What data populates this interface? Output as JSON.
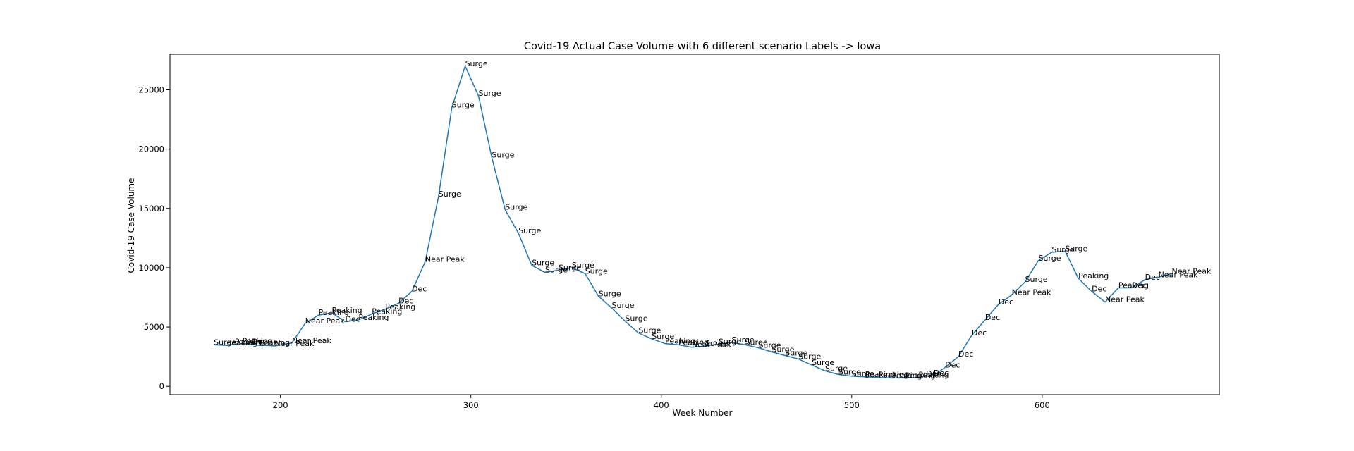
{
  "chart_data": {
    "type": "line",
    "title": "Covid-19 Actual Case Volume with 6 different scenario Labels  -> Iowa",
    "xlabel": "Week Number",
    "ylabel": "Covid-19 Case Volume",
    "xlim": [
      142,
      693
    ],
    "ylim": [
      -700,
      28000
    ],
    "xticks": [
      200,
      300,
      400,
      500,
      600
    ],
    "yticks": [
      0,
      5000,
      10000,
      15000,
      20000,
      25000
    ],
    "grid": false,
    "colors": {
      "line": "#1f77b4"
    },
    "series": [
      {
        "points": [
          {
            "x": 165,
            "y": 3500,
            "label": "Surge"
          },
          {
            "x": 172,
            "y": 3450,
            "label": "Peaking"
          },
          {
            "x": 176,
            "y": 3550,
            "label": "Peaking"
          },
          {
            "x": 180,
            "y": 3600,
            "label": "Peaking"
          },
          {
            "x": 185,
            "y": 3550,
            "label": "Dec"
          },
          {
            "x": 189,
            "y": 3450,
            "label": "Peaking"
          },
          {
            "x": 193,
            "y": 3450,
            "label": "Dec"
          },
          {
            "x": 197,
            "y": 3400,
            "label": "Near Peak"
          },
          {
            "x": 206,
            "y": 3650,
            "label": "Near Peak"
          },
          {
            "x": 213,
            "y": 5300,
            "label": "Near Peak"
          },
          {
            "x": 220,
            "y": 6000,
            "label": "Peaking"
          },
          {
            "x": 227,
            "y": 6200,
            "label": "Peaking"
          },
          {
            "x": 234,
            "y": 5450,
            "label": "Dec"
          },
          {
            "x": 241,
            "y": 5600,
            "label": "Peaking"
          },
          {
            "x": 248,
            "y": 6100,
            "label": "Peaking"
          },
          {
            "x": 255,
            "y": 6500,
            "label": "Peaking"
          },
          {
            "x": 262,
            "y": 7000,
            "label": "Dec"
          },
          {
            "x": 269,
            "y": 8000,
            "label": "Dec"
          },
          {
            "x": 276,
            "y": 10500,
            "label": "Near Peak"
          },
          {
            "x": 283,
            "y": 16000,
            "label": "Surge"
          },
          {
            "x": 290,
            "y": 23500,
            "label": "Surge"
          },
          {
            "x": 297,
            "y": 27000,
            "label": "Surge"
          },
          {
            "x": 304,
            "y": 24500,
            "label": "Surge"
          },
          {
            "x": 311,
            "y": 19300,
            "label": "Surge"
          },
          {
            "x": 318,
            "y": 14900,
            "label": "Surge"
          },
          {
            "x": 325,
            "y": 12900,
            "label": "Surge"
          },
          {
            "x": 332,
            "y": 10200,
            "label": "Surge"
          },
          {
            "x": 339,
            "y": 9600,
            "label": "Surge"
          },
          {
            "x": 346,
            "y": 9800,
            "label": "Surge"
          },
          {
            "x": 353,
            "y": 10000,
            "label": "Surge"
          },
          {
            "x": 360,
            "y": 9500,
            "label": "Surge"
          },
          {
            "x": 367,
            "y": 7600,
            "label": "Surge"
          },
          {
            "x": 374,
            "y": 6600,
            "label": "Surge"
          },
          {
            "x": 381,
            "y": 5500,
            "label": "Surge"
          },
          {
            "x": 388,
            "y": 4500,
            "label": "Surge"
          },
          {
            "x": 395,
            "y": 4000,
            "label": "Surge"
          },
          {
            "x": 402,
            "y": 3600,
            "label": "Peaking"
          },
          {
            "x": 409,
            "y": 3500,
            "label": "Peaking"
          },
          {
            "x": 416,
            "y": 3300,
            "label": "Near Peak"
          },
          {
            "x": 423,
            "y": 3400,
            "label": "Surge"
          },
          {
            "x": 430,
            "y": 3550,
            "label": "Surge"
          },
          {
            "x": 437,
            "y": 3700,
            "label": "Surge"
          },
          {
            "x": 444,
            "y": 3500,
            "label": "Surge"
          },
          {
            "x": 451,
            "y": 3250,
            "label": "Surge"
          },
          {
            "x": 458,
            "y": 2900,
            "label": "Surge"
          },
          {
            "x": 465,
            "y": 2600,
            "label": "Surge"
          },
          {
            "x": 472,
            "y": 2300,
            "label": "Surge"
          },
          {
            "x": 479,
            "y": 1800,
            "label": "Surge"
          },
          {
            "x": 486,
            "y": 1300,
            "label": "Surge"
          },
          {
            "x": 493,
            "y": 1000,
            "label": "Surge"
          },
          {
            "x": 500,
            "y": 850,
            "label": "Surge"
          },
          {
            "x": 507,
            "y": 800,
            "label": "Peaking"
          },
          {
            "x": 514,
            "y": 750,
            "label": "Peaking"
          },
          {
            "x": 521,
            "y": 700,
            "label": "Peaking"
          },
          {
            "x": 528,
            "y": 700,
            "label": "Peaking"
          },
          {
            "x": 535,
            "y": 750,
            "label": "Peaking"
          },
          {
            "x": 539,
            "y": 850,
            "label": "Dec"
          },
          {
            "x": 543,
            "y": 900,
            "label": "Dec"
          },
          {
            "x": 549,
            "y": 1600,
            "label": "Dec"
          },
          {
            "x": 556,
            "y": 2500,
            "label": "Dec"
          },
          {
            "x": 563,
            "y": 4300,
            "label": "Dec"
          },
          {
            "x": 570,
            "y": 5600,
            "label": "Dec"
          },
          {
            "x": 577,
            "y": 6900,
            "label": "Dec"
          },
          {
            "x": 584,
            "y": 7700,
            "label": "Near Peak"
          },
          {
            "x": 591,
            "y": 8800,
            "label": "Surge"
          },
          {
            "x": 598,
            "y": 10600,
            "label": "Surge"
          },
          {
            "x": 605,
            "y": 11300,
            "label": "Surge"
          },
          {
            "x": 612,
            "y": 11400,
            "label": "Surge"
          },
          {
            "x": 619,
            "y": 9100,
            "label": "Peaking"
          },
          {
            "x": 626,
            "y": 8000,
            "label": "Dec"
          },
          {
            "x": 633,
            "y": 7100,
            "label": "Near Peak"
          },
          {
            "x": 640,
            "y": 8300,
            "label": "Peaking"
          },
          {
            "x": 647,
            "y": 8300,
            "label": "Dec"
          },
          {
            "x": 654,
            "y": 9000,
            "label": "Dec"
          },
          {
            "x": 661,
            "y": 9200,
            "label": "Near Peak"
          },
          {
            "x": 668,
            "y": 9500,
            "label": "Near Peak"
          }
        ]
      }
    ]
  }
}
